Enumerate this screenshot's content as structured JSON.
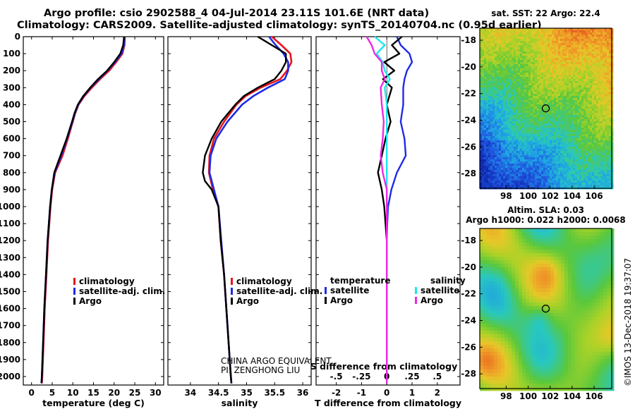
{
  "header": {
    "line1": "Argo profile: csio 2902588_4 04-Jul-2014 23.11S 101.6E (NRT data)",
    "line2": "Climatology: CARS2009. Satellite-adjusted climatology: synTS_20140704.nc (0.95d earlier)"
  },
  "colors": {
    "climatology": "#e8141a",
    "satellite": "#1e2ce6",
    "argo": "#000000",
    "sal_satellite": "#18e8ee",
    "sal_argo": "#ee28e6"
  },
  "depth_ticks": [
    0,
    100,
    200,
    300,
    400,
    500,
    600,
    700,
    800,
    900,
    1000,
    1100,
    1200,
    1300,
    1400,
    1500,
    1600,
    1700,
    1800,
    1900,
    2000
  ],
  "chart_data": [
    {
      "type": "line",
      "xlabel": "temperature (deg C)",
      "ylabel": "",
      "xlim": [
        -2,
        32
      ],
      "ylim": [
        2050,
        0
      ],
      "xticks": [
        0,
        5,
        10,
        15,
        20,
        25,
        30
      ],
      "legend": [
        "climatology",
        "satellite-adj. clim.",
        "Argo"
      ],
      "series": [
        {
          "name": "climatology",
          "depth": [
            0,
            50,
            100,
            150,
            200,
            250,
            300,
            350,
            400,
            450,
            500,
            600,
            700,
            800,
            900,
            1000,
            1200,
            1400,
            1600,
            1800,
            2000,
            2040
          ],
          "values": [
            22.6,
            22.5,
            22.0,
            20.5,
            18.8,
            16.6,
            14.6,
            12.8,
            11.4,
            10.6,
            10.0,
            8.8,
            7.5,
            5.7,
            5.0,
            4.6,
            4.0,
            3.6,
            3.2,
            2.9,
            2.6,
            2.5
          ]
        },
        {
          "name": "satellite-adj. clim.",
          "depth": [
            0,
            50,
            100,
            150,
            200,
            250,
            300,
            350,
            400,
            450,
            500,
            600,
            700,
            800,
            900,
            1000,
            1200,
            1400,
            1600,
            1800,
            2000,
            2040
          ],
          "values": [
            22.5,
            22.4,
            21.8,
            20.2,
            18.4,
            16.3,
            14.3,
            12.6,
            11.3,
            10.5,
            9.9,
            8.6,
            7.2,
            5.6,
            4.9,
            4.5,
            3.9,
            3.5,
            3.1,
            2.8,
            2.5,
            2.4
          ]
        },
        {
          "name": "Argo",
          "depth": [
            0,
            50,
            100,
            150,
            200,
            250,
            300,
            350,
            400,
            450,
            500,
            600,
            700,
            800,
            900,
            1000,
            1200,
            1400,
            1600,
            1800,
            2000,
            2040
          ],
          "values": [
            22.4,
            22.2,
            21.5,
            20.0,
            18.3,
            16.1,
            14.2,
            12.5,
            11.2,
            10.4,
            9.8,
            8.5,
            7.0,
            5.5,
            4.9,
            4.5,
            3.9,
            3.5,
            3.1,
            2.8,
            2.5,
            2.4
          ]
        }
      ]
    },
    {
      "type": "line",
      "xlabel": "salinity",
      "ylabel": "",
      "xlim": [
        33.6,
        36.15
      ],
      "ylim": [
        2050,
        0
      ],
      "xticks": [
        34,
        34.5,
        35,
        35.5,
        36
      ],
      "legend": [
        "climatology",
        "satellite-adj. clim.",
        "Argo"
      ],
      "series": [
        {
          "name": "climatology",
          "depth": [
            0,
            50,
            100,
            150,
            200,
            250,
            300,
            350,
            400,
            500,
            600,
            700,
            800,
            900,
            1000,
            1200,
            1400,
            1600,
            1800,
            2000,
            2040
          ],
          "values": [
            35.45,
            35.62,
            35.78,
            35.8,
            35.72,
            35.6,
            35.25,
            34.98,
            34.82,
            34.6,
            34.42,
            34.34,
            34.33,
            34.4,
            34.5,
            34.54,
            34.6,
            34.64,
            34.68,
            34.72,
            34.73
          ]
        },
        {
          "name": "satellite-adj. clim.",
          "depth": [
            0,
            50,
            100,
            150,
            200,
            250,
            300,
            350,
            400,
            500,
            600,
            700,
            800,
            900,
            1000,
            1200,
            1400,
            1600,
            1800,
            2000,
            2040
          ],
          "values": [
            35.4,
            35.52,
            35.66,
            35.74,
            35.74,
            35.68,
            35.38,
            35.12,
            34.92,
            34.66,
            34.46,
            34.36,
            34.34,
            34.42,
            34.5,
            34.55,
            34.6,
            34.64,
            34.68,
            34.72,
            34.73
          ]
        },
        {
          "name": "Argo",
          "depth": [
            0,
            30,
            60,
            100,
            150,
            200,
            250,
            300,
            350,
            400,
            500,
            600,
            700,
            800,
            850,
            900,
            1000,
            1200,
            1400,
            1600,
            1800,
            2000,
            2040
          ],
          "values": [
            35.2,
            35.35,
            35.5,
            35.7,
            35.7,
            35.62,
            35.5,
            35.2,
            34.95,
            34.8,
            34.55,
            34.38,
            34.26,
            34.22,
            34.26,
            34.38,
            34.5,
            34.54,
            34.6,
            34.64,
            34.68,
            34.72,
            34.73
          ]
        }
      ]
    },
    {
      "type": "line",
      "xlabel": "T difference from climatology",
      "x2label": "S difference from climatology",
      "xlim": [
        -2.8,
        2.9
      ],
      "x2lim": [
        -0.7,
        0.725
      ],
      "ylim": [
        2050,
        0
      ],
      "xticks": [
        -2,
        -1,
        0,
        1,
        2
      ],
      "x2ticks": [
        -0.5,
        -0.25,
        0,
        0.25,
        0.5
      ],
      "legend_groups": [
        {
          "title": "temperature",
          "entries": [
            "satellite",
            "Argo"
          ]
        },
        {
          "title": "salinity",
          "entries": [
            "satellite",
            "Argo"
          ]
        }
      ],
      "series": [
        {
          "name": "temperature satellite",
          "axis": "T",
          "depth": [
            0,
            50,
            100,
            150,
            200,
            250,
            300,
            400,
            500,
            600,
            700,
            800,
            900,
            1000,
            1100,
            1200,
            1400,
            1600,
            1800,
            2000,
            2040
          ],
          "values": [
            0.4,
            0.55,
            0.9,
            1.0,
            0.8,
            0.7,
            0.65,
            0.65,
            0.55,
            0.7,
            0.75,
            0.4,
            0.18,
            0.05,
            0.02,
            0.0,
            0.0,
            0.0,
            0.0,
            0.0,
            0.0
          ]
        },
        {
          "name": "temperature Argo",
          "axis": "T",
          "depth": [
            0,
            50,
            100,
            150,
            200,
            250,
            300,
            400,
            500,
            600,
            700,
            800,
            900,
            1000,
            1100,
            1200,
            1400,
            1600,
            1800,
            2000,
            2040
          ],
          "values": [
            0.6,
            0.2,
            0.5,
            -0.1,
            0.3,
            -0.15,
            0.2,
            0.0,
            0.15,
            -0.05,
            -0.2,
            -0.35,
            -0.2,
            -0.1,
            -0.05,
            0.0,
            0.0,
            0.0,
            0.0,
            0.0,
            0.0
          ]
        },
        {
          "name": "salinity satellite",
          "axis": "S",
          "depth": [
            0,
            50,
            100,
            150,
            200,
            250,
            300,
            400,
            500,
            600,
            700,
            800,
            900,
            1000,
            1200,
            1400,
            1600,
            1800,
            2000,
            2040
          ],
          "values": [
            -0.12,
            -0.02,
            -0.1,
            -0.04,
            -0.02,
            0.03,
            -0.02,
            0.0,
            0.0,
            0.0,
            0.0,
            0.0,
            0.0,
            0.0,
            0.0,
            0.0,
            0.0,
            0.0,
            0.0,
            0.0
          ]
        },
        {
          "name": "salinity Argo",
          "axis": "S",
          "depth": [
            0,
            50,
            100,
            150,
            200,
            250,
            300,
            400,
            500,
            600,
            700,
            800,
            900,
            1000,
            1200,
            1400,
            1600,
            1800,
            2000,
            2040
          ],
          "values": [
            -0.2,
            -0.15,
            -0.12,
            -0.05,
            -0.05,
            -0.02,
            -0.06,
            -0.05,
            -0.03,
            -0.04,
            -0.06,
            -0.04,
            0.0,
            0.0,
            0.0,
            0.0,
            0.0,
            0.0,
            0.0,
            0.0
          ]
        }
      ]
    },
    {
      "type": "heatmap",
      "title": "sat. SST: 22 Argo: 22.4",
      "xlim": [
        95.6,
        107.6
      ],
      "ylim": [
        -29.1,
        -17.1
      ],
      "xticks": [
        98,
        100,
        102,
        104,
        106
      ],
      "yticks": [
        -18,
        -20,
        -22,
        -24,
        -26,
        -28
      ],
      "marker": {
        "lon": 101.6,
        "lat": -23.11
      }
    },
    {
      "type": "heatmap",
      "title": "Altim. SLA: 0.03",
      "subtitle": "Argo h1000: 0.022 h2000: 0.0068",
      "xlim": [
        95.6,
        107.6
      ],
      "ylim": [
        -29.1,
        -17.1
      ],
      "xticks": [
        98,
        100,
        102,
        104,
        106
      ],
      "yticks": [
        -18,
        -20,
        -22,
        -24,
        -26,
        -28
      ],
      "marker": {
        "lon": 101.6,
        "lat": -23.11
      }
    }
  ],
  "legend_labels": {
    "climatology": "climatology",
    "satellite_adj": "satellite-adj. clim.",
    "argo": "Argo",
    "temperature": "temperature",
    "salinity": "salinity",
    "satellite": "satellite"
  },
  "credits": {
    "line1": "CHINA ARGO EQUIVALENT",
    "line2": "PI: ZENGHONG LIU",
    "imos": "©IMOS 13-Dec-2018 19:37:07"
  }
}
